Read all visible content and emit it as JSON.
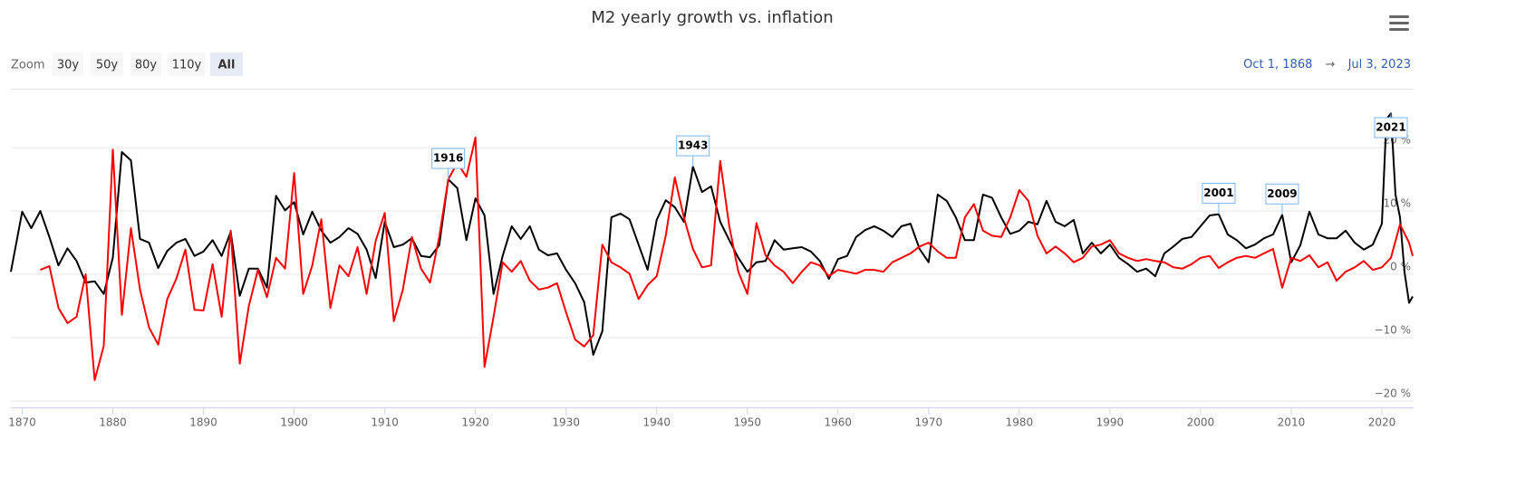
{
  "chart_data": {
    "type": "line",
    "title": "M2 yearly growth vs. inflation",
    "zoom": {
      "label": "Zoom",
      "buttons": [
        "30y",
        "50y",
        "80y",
        "110y",
        "All"
      ],
      "selected": 4
    },
    "range": {
      "from": "Oct 1, 1868",
      "arrow": "→",
      "to": "Jul 3, 2023"
    },
    "xlim": [
      1868.75,
      2023.5
    ],
    "xticks": [
      1870,
      1880,
      1890,
      1900,
      1910,
      1920,
      1930,
      1940,
      1950,
      1960,
      1970,
      1980,
      1990,
      2000,
      2010,
      2020
    ],
    "ylim": [
      -21,
      29.3
    ],
    "yticks": [
      {
        "value": -20,
        "label": "−20 %"
      },
      {
        "value": -10,
        "label": "−10 %"
      },
      {
        "value": 0,
        "label": "0 %"
      },
      {
        "value": 10,
        "label": "10 %"
      },
      {
        "value": 20,
        "label": "20 %"
      }
    ],
    "grid": true,
    "series": [
      {
        "color": "#000000",
        "x": [
          1868.75,
          1870,
          1871,
          1872,
          1873,
          1874,
          1875,
          1876,
          1877,
          1878,
          1879,
          1880,
          1881,
          1882,
          1883,
          1884,
          1885,
          1886,
          1887,
          1888,
          1889,
          1890,
          1891,
          1892,
          1893,
          1894,
          1895,
          1896,
          1897,
          1898,
          1899,
          1900,
          1901,
          1902,
          1903,
          1904,
          1905,
          1906,
          1907,
          1908,
          1909,
          1910,
          1911,
          1912,
          1913,
          1914,
          1915,
          1916,
          1917,
          1918,
          1919,
          1920,
          1921,
          1922,
          1923,
          1924,
          1925,
          1926,
          1927,
          1928,
          1929,
          1930,
          1931,
          1932,
          1933,
          1934,
          1935,
          1936,
          1937,
          1938,
          1939,
          1940,
          1941,
          1942,
          1943,
          1944,
          1945,
          1946,
          1947,
          1948,
          1949,
          1950,
          1951,
          1952,
          1953,
          1954,
          1955,
          1956,
          1957,
          1958,
          1959,
          1960,
          1961,
          1962,
          1963,
          1964,
          1965,
          1966,
          1967,
          1968,
          1969,
          1970,
          1971,
          1972,
          1973,
          1974,
          1975,
          1976,
          1977,
          1978,
          1979,
          1980,
          1981,
          1982,
          1983,
          1984,
          1985,
          1986,
          1987,
          1988,
          1989,
          1990,
          1991,
          1992,
          1993,
          1994,
          1995,
          1996,
          1997,
          1998,
          1999,
          2000,
          2001,
          2002,
          2003,
          2004,
          2005,
          2006,
          2007,
          2008,
          2009,
          2010,
          2011,
          2012,
          2013,
          2014,
          2015,
          2016,
          2017,
          2018,
          2019,
          2020,
          2020.5,
          2021,
          2021.5,
          2022,
          2022.5,
          2023,
          2023.4
        ],
        "values": [
          0.4,
          9.9,
          7.3,
          10,
          5.9,
          1.4,
          4.1,
          2.1,
          -1.3,
          -1.1,
          -3.1,
          2.6,
          19.3,
          18,
          5.6,
          5,
          1,
          3.7,
          5,
          5.6,
          2.9,
          3.6,
          5.4,
          2.9,
          6.7,
          -3.4,
          0.9,
          0.9,
          -2.1,
          12.4,
          10.1,
          11.4,
          6.3,
          9.9,
          6.9,
          5,
          5.9,
          7.3,
          6.4,
          3.9,
          -0.6,
          8.3,
          4.3,
          4.7,
          5.7,
          2.9,
          2.7,
          4.6,
          15,
          13.6,
          5.4,
          12,
          9.3,
          -3.1,
          2.9,
          7.6,
          5.6,
          7.6,
          3.9,
          3,
          3.3,
          0.7,
          -1.4,
          -4.4,
          -12.7,
          -9,
          9,
          9.6,
          8.7,
          4.7,
          0.7,
          8.6,
          11.7,
          10.6,
          8.3,
          17,
          13,
          13.9,
          8.3,
          5.4,
          2.6,
          0.4,
          1.9,
          2.1,
          5.4,
          3.9,
          4.1,
          4.3,
          3.6,
          2.1,
          -0.7,
          2.4,
          2.9,
          5.9,
          7,
          7.6,
          6.9,
          5.9,
          7.6,
          8,
          4,
          1.9,
          12.6,
          11.6,
          9,
          5.4,
          5.4,
          12.6,
          12.1,
          9,
          6.4,
          6.9,
          8.3,
          7.9,
          11.6,
          8.3,
          7.6,
          8.6,
          3.3,
          5,
          3.3,
          4.7,
          2.6,
          1.6,
          0.4,
          0.9,
          -0.3,
          3.3,
          4.4,
          5.6,
          5.9,
          7.6,
          9.3,
          9.5,
          6.3,
          5.4,
          4.1,
          4.7,
          5.7,
          6.3,
          9.4,
          1.9,
          4.6,
          9.9,
          6.3,
          5.7,
          5.7,
          6.9,
          5,
          3.9,
          4.7,
          8,
          24.5,
          25.4,
          12.6,
          9,
          0.3,
          -4.5,
          -3.5
        ]
      },
      {
        "color": "#ff0000",
        "x": [
          1872,
          1873,
          1874,
          1875,
          1876,
          1877,
          1878,
          1879,
          1880,
          1881,
          1882,
          1883,
          1884,
          1885,
          1886,
          1887,
          1888,
          1889,
          1890,
          1891,
          1892,
          1893,
          1894,
          1895,
          1896,
          1897,
          1898,
          1899,
          1900,
          1901,
          1902,
          1903,
          1904,
          1905,
          1906,
          1907,
          1908,
          1909,
          1910,
          1911,
          1912,
          1913,
          1914,
          1915,
          1916,
          1917,
          1918,
          1919,
          1920,
          1921,
          1922,
          1923,
          1924,
          1925,
          1926,
          1927,
          1928,
          1929,
          1930,
          1931,
          1932,
          1933,
          1934,
          1935,
          1936,
          1937,
          1938,
          1939,
          1940,
          1941,
          1942,
          1943,
          1944,
          1945,
          1946,
          1947,
          1948,
          1949,
          1950,
          1951,
          1952,
          1953,
          1954,
          1955,
          1956,
          1957,
          1958,
          1959,
          1960,
          1961,
          1962,
          1963,
          1964,
          1965,
          1966,
          1967,
          1968,
          1969,
          1970,
          1971,
          1972,
          1973,
          1974,
          1975,
          1976,
          1977,
          1978,
          1979,
          1980,
          1981,
          1982,
          1983,
          1984,
          1985,
          1986,
          1987,
          1988,
          1989,
          1990,
          1991,
          1992,
          1993,
          1994,
          1995,
          1996,
          1997,
          1998,
          1999,
          2000,
          2001,
          2002,
          2003,
          2004,
          2005,
          2006,
          2007,
          2008,
          2009,
          2010,
          2011,
          2012,
          2013,
          2014,
          2015,
          2016,
          2017,
          2018,
          2019,
          2020,
          2021,
          2022,
          2023,
          2023.4
        ],
        "values": [
          0.7,
          1.3,
          -5.3,
          -7.7,
          -6.7,
          0,
          -16.7,
          -11.3,
          19.7,
          -6.4,
          7.3,
          -2.4,
          -8.4,
          -11.1,
          -3.9,
          -0.7,
          3.9,
          -5.6,
          -5.7,
          1.6,
          -6.7,
          6.9,
          -14.1,
          -5,
          0.7,
          -3.6,
          2.6,
          0.9,
          16,
          -3.1,
          1.4,
          8.7,
          -5.3,
          1.4,
          -0.3,
          4.3,
          -3.1,
          5.3,
          9.7,
          -7.4,
          -2.4,
          5.9,
          0.9,
          -1.3,
          5.9,
          15,
          17.6,
          15.4,
          21.6,
          -14.6,
          -6.7,
          1.9,
          0.4,
          2.1,
          -1,
          -2.4,
          -2.1,
          -1.4,
          -6,
          -10.3,
          -11.4,
          -9.6,
          4.7,
          1.9,
          1.1,
          0.1,
          -3.9,
          -1.7,
          -0.3,
          6.1,
          15.3,
          9,
          4,
          1.1,
          1.4,
          17.9,
          7.6,
          0.4,
          -3.1,
          8.1,
          3,
          1.4,
          0.4,
          -1.4,
          0.4,
          1.9,
          1.4,
          -0.3,
          0.7,
          0.4,
          0.1,
          0.7,
          0.7,
          0.4,
          1.9,
          2.6,
          3.3,
          4.4,
          5,
          3.6,
          2.6,
          2.6,
          9,
          11.1,
          6.9,
          6.1,
          5.9,
          9,
          13.3,
          11.6,
          6.1,
          3.3,
          4.4,
          3.3,
          1.9,
          2.6,
          4.4,
          4.7,
          5.4,
          3.3,
          2.6,
          2.1,
          2.4,
          2.1,
          1.9,
          1.1,
          0.9,
          1.6,
          2.6,
          2.9,
          1,
          1.9,
          2.6,
          2.9,
          2.6,
          3.3,
          4,
          -2.1,
          2.6,
          2.1,
          3,
          1.1,
          1.9,
          -1,
          0.4,
          1.1,
          2.1,
          0.7,
          1.1,
          2.6,
          7.9,
          5,
          2.9
        ]
      }
    ],
    "flags": [
      {
        "x": 1917,
        "label": "1916"
      },
      {
        "x": 1944,
        "label": "1943"
      },
      {
        "x": 2002,
        "label": "2001"
      },
      {
        "x": 2009,
        "label": "2009"
      },
      {
        "x": 2021,
        "label": "2021"
      }
    ]
  }
}
